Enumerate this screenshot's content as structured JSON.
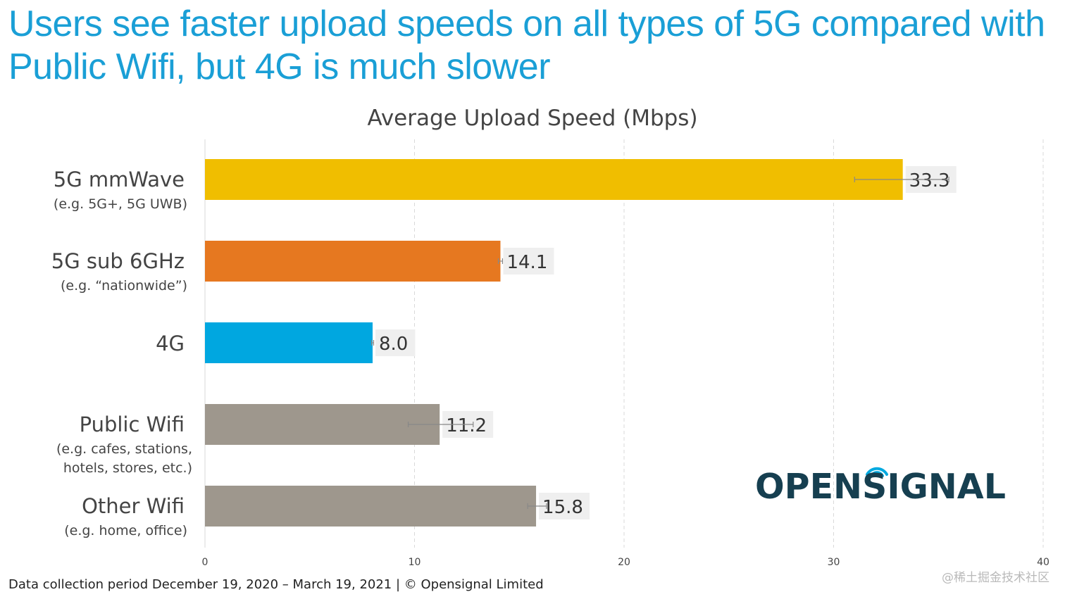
{
  "headline": "Users see faster upload speeds on all types of 5G compared with Public Wifi, but 4G is much slower",
  "footer": "Data collection period December 19, 2020 – March 19, 2021  |  © Opensignal Limited",
  "watermark": "@稀土掘金技术社区",
  "logo_text": "OPENSIGNAL",
  "colors": {
    "headline": "#1a9fd6",
    "logo": "#163f50",
    "logo_signal": "#00a9e0"
  },
  "chart_data": {
    "type": "bar",
    "orientation": "horizontal",
    "title": "Average Upload Speed (Mbps)",
    "xlabel": "",
    "ylabel": "",
    "xlim": [
      0,
      40
    ],
    "xticks": [
      "0",
      "10",
      "20",
      "30",
      "40"
    ],
    "grid": true,
    "categories": [
      {
        "name": "5G mmWave",
        "sub": [
          "(e.g. 5G+, 5G UWB)"
        ],
        "value": 33.3,
        "label": "33.3",
        "err_low": 31.0,
        "err_high": 35.5,
        "color": "#f0be00"
      },
      {
        "name": "5G sub 6GHz",
        "sub": [
          "(e.g. “nationwide”)"
        ],
        "value": 14.1,
        "label": "14.1",
        "err_low": 14.0,
        "err_high": 14.2,
        "color": "#e67820"
      },
      {
        "name": "4G",
        "sub": [],
        "value": 8.0,
        "label": "8.0",
        "err_low": 7.95,
        "err_high": 8.05,
        "color": "#00a7e0"
      },
      {
        "name": "Public Wifi",
        "sub": [
          "(e.g. cafes, stations,",
          "hotels, stores, etc.)"
        ],
        "value": 11.2,
        "label": "11.2",
        "err_low": 9.7,
        "err_high": 12.8,
        "color": "#9e978d"
      },
      {
        "name": "Other Wifi",
        "sub": [
          "(e.g. home, office)"
        ],
        "value": 15.8,
        "label": "15.8",
        "err_low": 15.4,
        "err_high": 16.3,
        "color": "#9e978d"
      }
    ]
  }
}
